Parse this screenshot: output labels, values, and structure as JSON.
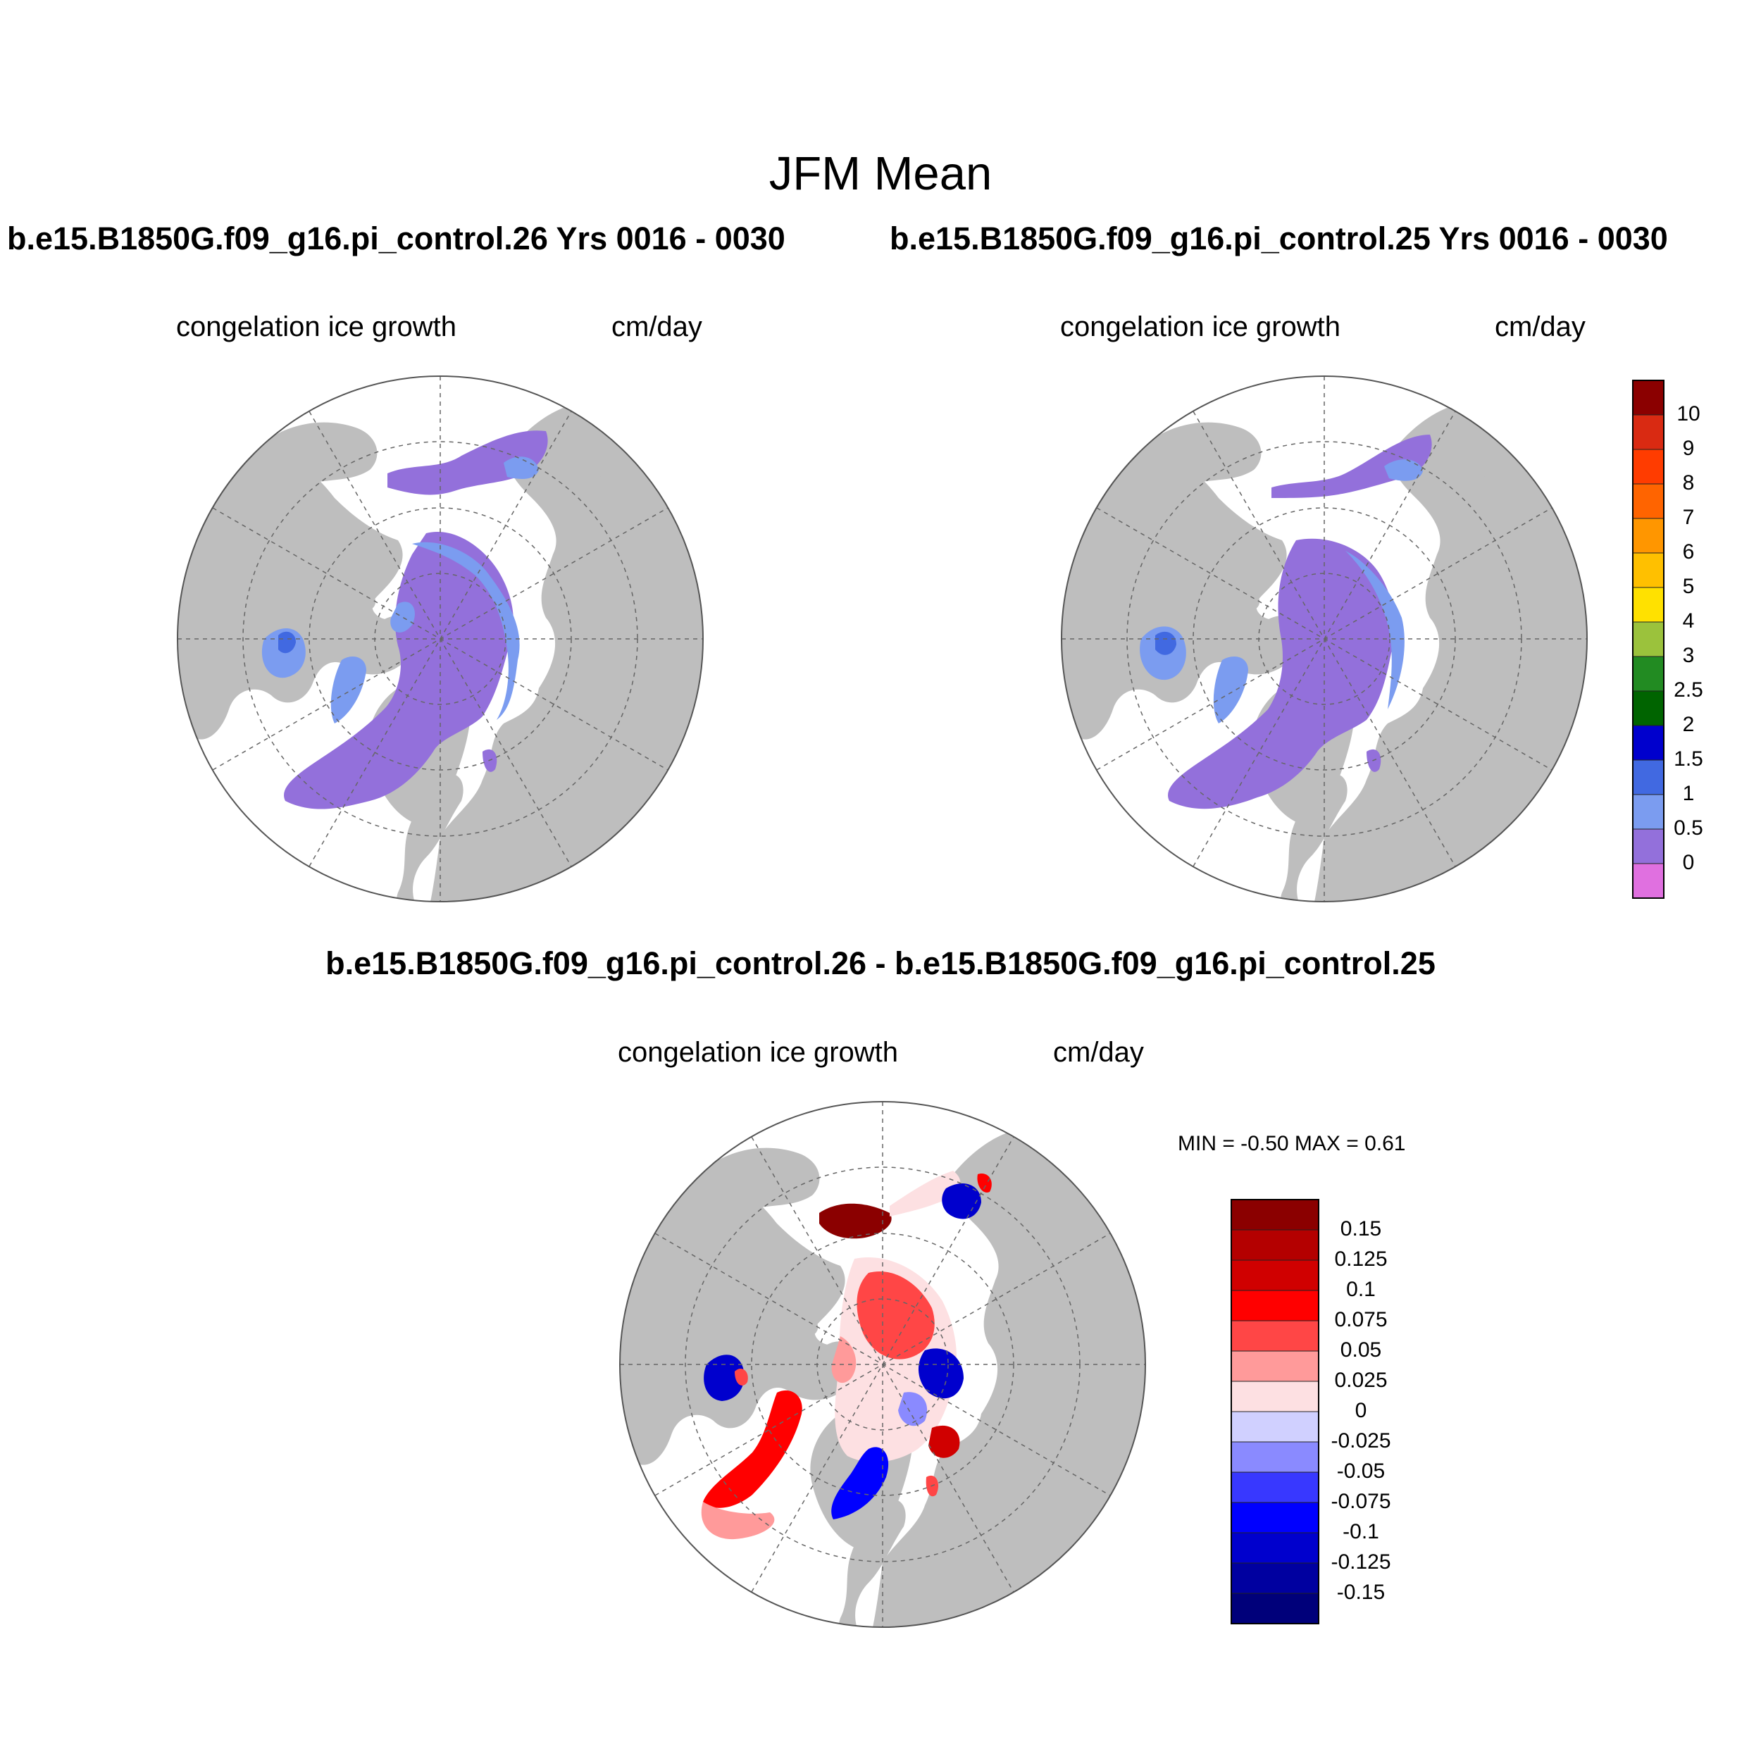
{
  "title": "JFM Mean",
  "panels": [
    {
      "title": "b.e15.B1850G.f09_g16.pi_control.26  Yrs 0016 - 0030",
      "variable": "congelation ice growth",
      "units": "cm/day"
    },
    {
      "title": "b.e15.B1850G.f09_g16.pi_control.25  Yrs 0016 - 0030",
      "variable": "congelation ice growth",
      "units": "cm/day"
    },
    {
      "title": "b.e15.B1850G.f09_g16.pi_control.26 - b.e15.B1850G.f09_g16.pi_control.25",
      "variable": "congelation ice growth",
      "units": "cm/day",
      "stats": "MIN =  -0.50 MAX =   0.61"
    }
  ],
  "colorbar_main": {
    "labels": [
      "10",
      "9",
      "8",
      "7",
      "6",
      "5",
      "4",
      "3",
      "2.5",
      "2",
      "1.5",
      "1",
      "0.5",
      "0"
    ],
    "colors": [
      "#8b0000",
      "#d92a12",
      "#ff3c00",
      "#ff6400",
      "#ff9600",
      "#ffc000",
      "#ffe100",
      "#9bc23c",
      "#228b22",
      "#006400",
      "#0000cd",
      "#4169e1",
      "#7b9cf0",
      "#9370db",
      "#e070e0"
    ]
  },
  "colorbar_diff": {
    "labels": [
      "0.15",
      "0.125",
      "0.1",
      "0.075",
      "0.05",
      "0.025",
      "0",
      "-0.025",
      "-0.05",
      "-0.075",
      "-0.1",
      "-0.125",
      "-0.15"
    ],
    "colors": [
      "#8b0000",
      "#b40000",
      "#d00000",
      "#ff0000",
      "#ff4646",
      "#ff9a9a",
      "#fde0e2",
      "#d0d0ff",
      "#8a8aff",
      "#3838ff",
      "#0000ff",
      "#0000cd",
      "#0000a0",
      "#00007a"
    ]
  },
  "map_colors": {
    "land": "#bebebe",
    "ocean": "#ffffff",
    "ice_low": "#9370db",
    "ice_mid": "#7b9cf0",
    "ice_high": "#4169e1"
  }
}
